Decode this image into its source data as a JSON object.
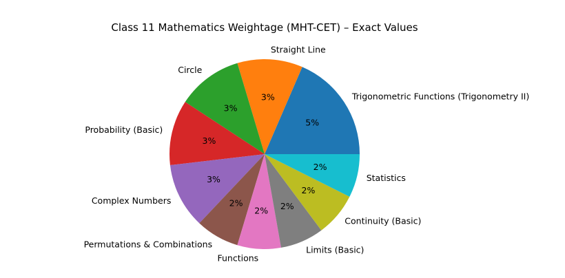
{
  "chart_data": {
    "type": "pie",
    "title": "Class 11 Mathematics Weightage (MHT-CET) – Exact Values",
    "labels": [
      "Trigonometric Functions (Trigonometry II)",
      "Straight Line",
      "Circle",
      "Probability (Basic)",
      "Complex Numbers",
      "Permutations & Combinations",
      "Functions",
      "Limits (Basic)",
      "Continuity (Basic)",
      "Statistics"
    ],
    "values": [
      5,
      3,
      3,
      3,
      3,
      2,
      2,
      2,
      2,
      2
    ],
    "value_labels": [
      "5%",
      "3%",
      "3%",
      "3%",
      "3%",
      "2%",
      "2%",
      "2%",
      "2%",
      "2%"
    ],
    "colors": [
      "#1f77b4",
      "#ff7f0e",
      "#2ca02c",
      "#d62728",
      "#9467bd",
      "#8c564b",
      "#e377c2",
      "#7f7f7f",
      "#bcbd22",
      "#17becf"
    ],
    "start_angle_deg": 0,
    "direction": "counterclockwise"
  }
}
